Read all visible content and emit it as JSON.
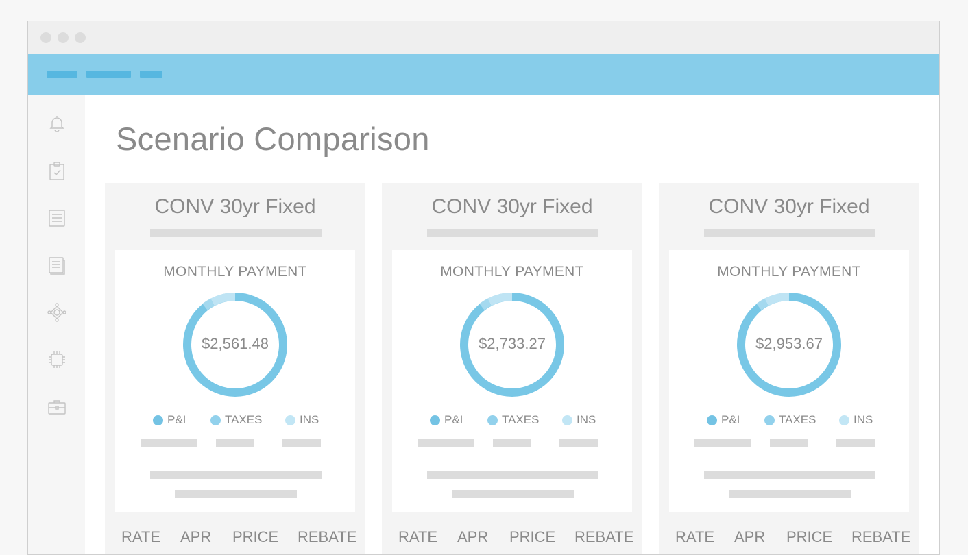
{
  "page": {
    "title": "Scenario Comparison"
  },
  "colors": {
    "accent": "#87cdea",
    "pi": "#74c3e4",
    "taxes": "#92d1ec",
    "ins": "#c2e6f5",
    "text": "#8a8a8a"
  },
  "sidebar": {
    "icons": [
      "bell-icon",
      "clipboard-check-icon",
      "list-icon",
      "document-icon",
      "network-icon",
      "chip-icon",
      "briefcase-icon"
    ]
  },
  "cards": [
    {
      "title": "CONV 30yr Fixed",
      "payment_label": "MONTHLY PAYMENT",
      "amount": "$2,561.48",
      "legend": [
        "P&I",
        "TAXES",
        "INS"
      ],
      "footer": [
        "RATE",
        "APR",
        "PRICE",
        "REBATE"
      ]
    },
    {
      "title": "CONV 30yr Fixed",
      "payment_label": "MONTHLY PAYMENT",
      "amount": "$2,733.27",
      "legend": [
        "P&I",
        "TAXES",
        "INS"
      ],
      "footer": [
        "RATE",
        "APR",
        "PRICE",
        "REBATE"
      ]
    },
    {
      "title": "CONV 30yr Fixed",
      "payment_label": "MONTHLY PAYMENT",
      "amount": "$2,953.67",
      "legend": [
        "P&I",
        "TAXES",
        "INS"
      ],
      "footer": [
        "RATE",
        "APR",
        "PRICE",
        "REBATE"
      ]
    }
  ]
}
